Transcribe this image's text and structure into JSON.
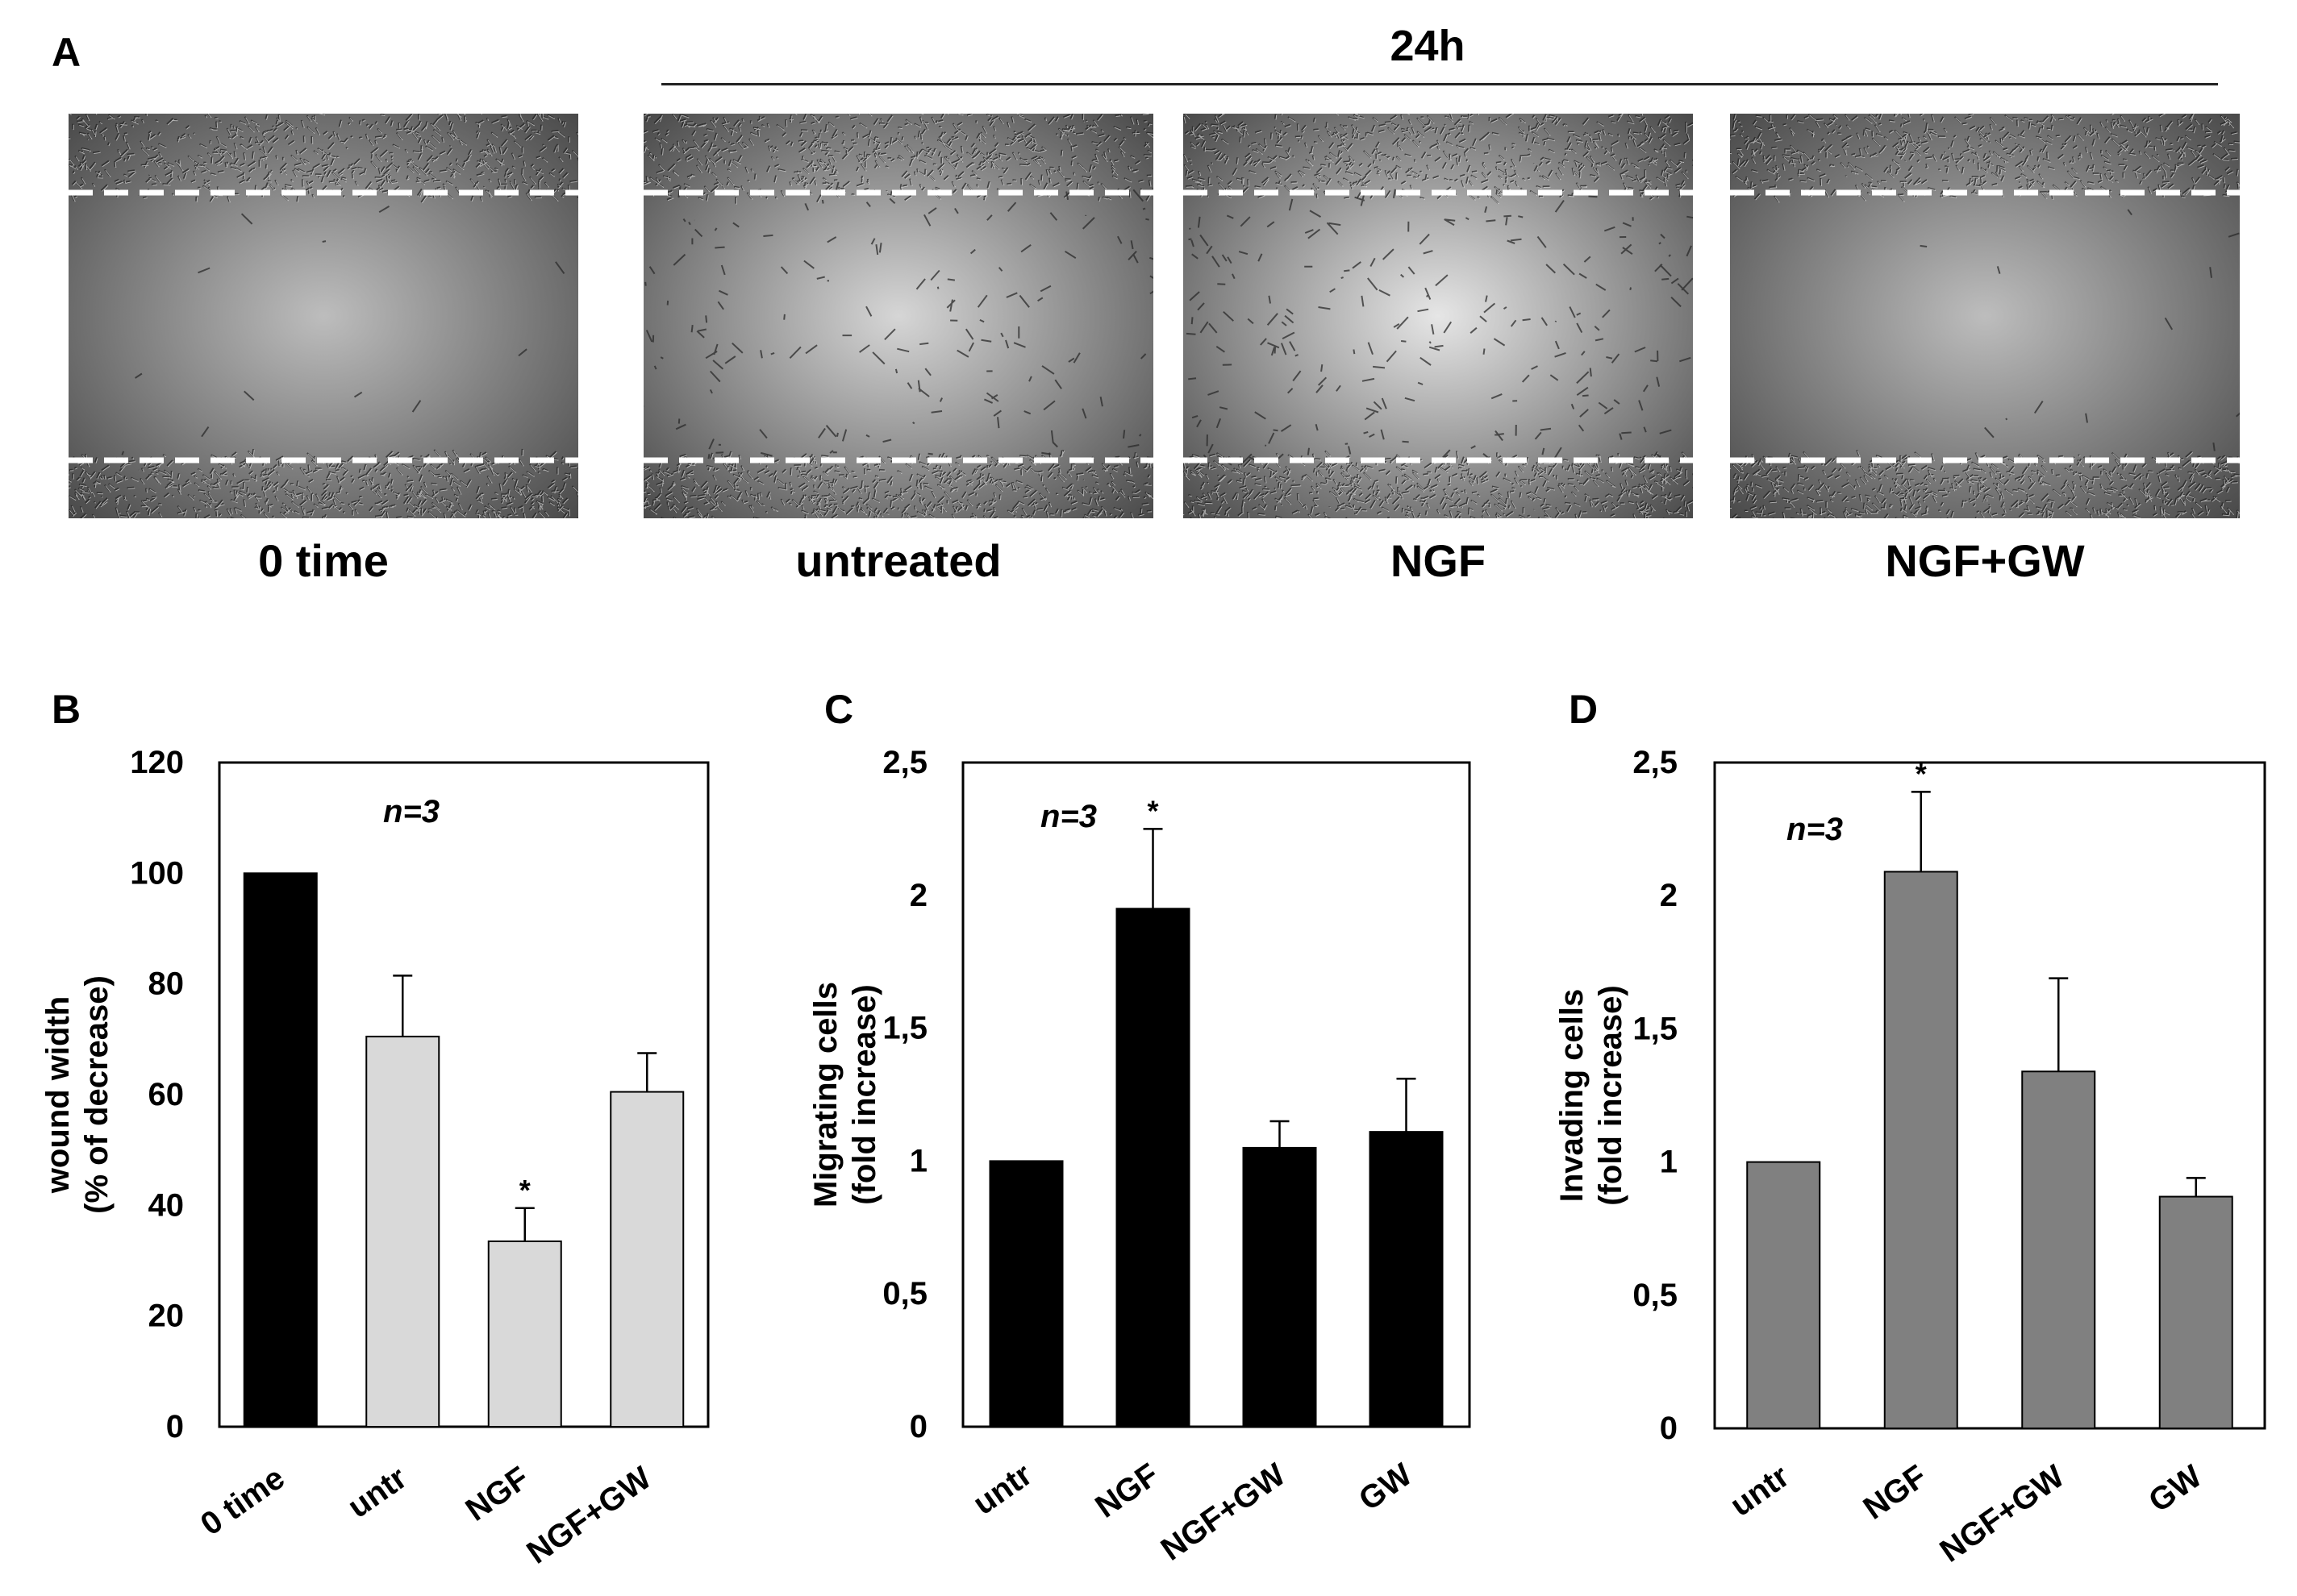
{
  "panel_labels": {
    "a": "A",
    "b": "B",
    "c": "C",
    "d": "D"
  },
  "panel_a": {
    "timepoint": "24h",
    "images": [
      {
        "caption": "0 time",
        "gap": "open"
      },
      {
        "caption": "untreated",
        "gap": "partial"
      },
      {
        "caption": "NGF",
        "gap": "closing"
      },
      {
        "caption": "NGF+GW",
        "gap": "open"
      }
    ]
  },
  "chart_data": [
    {
      "panel": "B",
      "type": "bar",
      "ylabel": [
        "wound width",
        "(%  of decrease)"
      ],
      "categories": [
        "0 time",
        "untr",
        "NGF",
        "NGF+GW"
      ],
      "values": [
        100,
        70.5,
        33.5,
        60.5
      ],
      "errors": [
        0,
        11,
        6,
        7
      ],
      "significance": [
        "",
        "",
        "*",
        ""
      ],
      "bar_colors": [
        "#000000",
        "#d9d9d9",
        "#d9d9d9",
        "#d9d9d9"
      ],
      "ylim": [
        0,
        120
      ],
      "yticks": [
        0,
        20,
        40,
        60,
        80,
        100,
        120
      ],
      "ytick_labels": [
        "0",
        "20",
        "40",
        "60",
        "80",
        "100",
        "120"
      ],
      "annotation": "n=3",
      "grid": false
    },
    {
      "panel": "C",
      "type": "bar",
      "ylabel": [
        "Migrating cells",
        "(fold increase)"
      ],
      "categories": [
        "untr",
        "NGF",
        "NGF+GW",
        "GW"
      ],
      "values": [
        1.0,
        1.95,
        1.05,
        1.11
      ],
      "errors": [
        0,
        0.3,
        0.1,
        0.2
      ],
      "significance": [
        "",
        "*",
        "",
        ""
      ],
      "bar_colors": [
        "#000000",
        "#000000",
        "#000000",
        "#000000"
      ],
      "ylim": [
        0,
        2.5
      ],
      "yticks": [
        0,
        0.5,
        1,
        1.5,
        2,
        2.5
      ],
      "ytick_labels": [
        "0",
        "0,5",
        "1",
        "1,5",
        "2",
        "2,5"
      ],
      "annotation": "n=3",
      "grid": false
    },
    {
      "panel": "D",
      "type": "bar",
      "ylabel": [
        "Invading cells",
        "(fold increase)"
      ],
      "categories": [
        "untr",
        "NGF",
        "NGF+GW",
        "GW"
      ],
      "values": [
        1.0,
        2.09,
        1.34,
        0.87
      ],
      "errors": [
        0,
        0.3,
        0.35,
        0.07
      ],
      "significance": [
        "",
        "*",
        "",
        ""
      ],
      "bar_colors": [
        "#808080",
        "#808080",
        "#808080",
        "#808080"
      ],
      "ylim": [
        0,
        2.5
      ],
      "yticks": [
        0,
        0.5,
        1,
        1.5,
        2,
        2.5
      ],
      "ytick_labels": [
        "0",
        "0,5",
        "1",
        "1,5",
        "2",
        "2,5"
      ],
      "annotation": "n=3",
      "grid": false
    }
  ]
}
